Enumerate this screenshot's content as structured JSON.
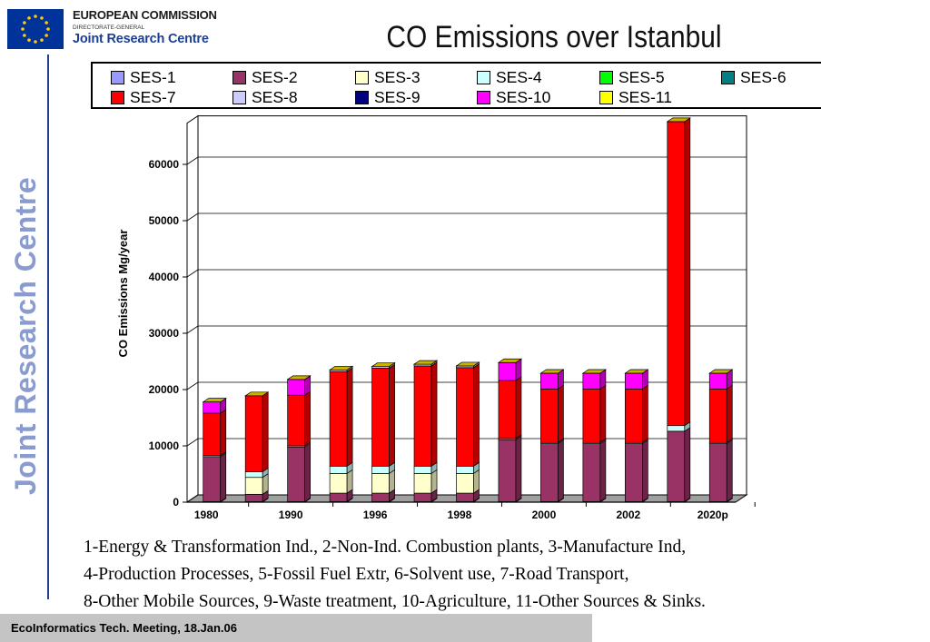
{
  "logo": {
    "line1": "EUROPEAN COMMISSION",
    "line2": "DIRECTORATE-GENERAL",
    "line3": "Joint Research Centre"
  },
  "sidebar_text": "Joint Research Centre",
  "footer_text": "EcoInformatics Tech. Meeting, 18.Jan.06",
  "caption_lines": [
    "1-Energy & Transformation Ind., 2-Non-Ind. Combustion plants, 3-Manufacture Ind,",
    "4-Production Processes, 5-Fossil Fuel Extr, 6-Solvent use, 7-Road Transport,",
    "8-Other Mobile Sources, 9-Waste treatment, 10-Agriculture, 11-Other Sources & Sinks."
  ],
  "chart_data": {
    "type": "bar",
    "stacked": true,
    "title": "CO Emissions over Istanbul",
    "ylabel": "CO Emissions Mg/year",
    "xlabel": "",
    "ylim": [
      0,
      67000
    ],
    "yticks": [
      0,
      10000,
      20000,
      30000,
      40000,
      50000,
      60000
    ],
    "ytick_labels": [
      "0",
      "10000",
      "20000",
      "30000",
      "40000",
      "50000",
      "60000"
    ],
    "xtick_labels": [
      "1980",
      "1990",
      "1996",
      "1998",
      "2000",
      "2002",
      "2020p"
    ],
    "grid": true,
    "legend_position": "top",
    "bar_count": 13,
    "series": [
      {
        "name": "SES-1",
        "color": "#9999ff",
        "values": [
          100,
          100,
          100,
          100,
          100,
          100,
          100,
          100,
          100,
          100,
          100,
          100,
          100
        ]
      },
      {
        "name": "SES-2",
        "color": "#993366",
        "values": [
          8000,
          1300,
          9700,
          1500,
          1500,
          1500,
          1500,
          11000,
          10300,
          10300,
          10300,
          12500,
          10300
        ]
      },
      {
        "name": "SES-3",
        "color": "#ffffcc",
        "values": [
          0,
          3000,
          0,
          3500,
          3500,
          3500,
          3500,
          0,
          0,
          0,
          0,
          0,
          0
        ]
      },
      {
        "name": "SES-4",
        "color": "#ccffff",
        "values": [
          200,
          1000,
          200,
          1300,
          1300,
          1300,
          1300,
          200,
          200,
          200,
          200,
          1000,
          200
        ]
      },
      {
        "name": "SES-5",
        "color": "#00ff00",
        "values": [
          0,
          0,
          0,
          0,
          0,
          0,
          0,
          0,
          0,
          0,
          0,
          0,
          0
        ]
      },
      {
        "name": "SES-6",
        "color": "#008080",
        "values": [
          0,
          0,
          0,
          0,
          0,
          0,
          0,
          0,
          0,
          0,
          0,
          0,
          0
        ]
      },
      {
        "name": "SES-7",
        "color": "#ff0000",
        "values": [
          7500,
          13500,
          9000,
          16800,
          17400,
          17800,
          17500,
          10300,
          9500,
          9500,
          9500,
          54000,
          9500
        ]
      },
      {
        "name": "SES-8",
        "color": "#ccccff",
        "values": [
          0,
          0,
          0,
          300,
          300,
          300,
          300,
          0,
          0,
          0,
          0,
          0,
          0
        ]
      },
      {
        "name": "SES-9",
        "color": "#000080",
        "values": [
          0,
          0,
          0,
          0,
          0,
          0,
          0,
          0,
          0,
          0,
          0,
          0,
          0
        ]
      },
      {
        "name": "SES-10",
        "color": "#ff00ff",
        "values": [
          2000,
          0,
          2800,
          0,
          0,
          0,
          0,
          3200,
          2800,
          2800,
          2800,
          0,
          2800
        ]
      },
      {
        "name": "SES-11",
        "color": "#ffff00",
        "values": [
          0,
          0,
          0,
          0,
          0,
          0,
          0,
          0,
          0,
          0,
          0,
          0,
          0
        ]
      }
    ]
  }
}
